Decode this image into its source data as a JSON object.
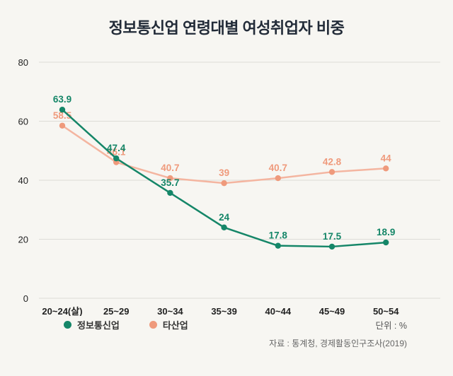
{
  "title": "정보통신업 연령대별 여성취업자 비중",
  "legend": {
    "items": [
      {
        "label": "정보통신업",
        "color": "#158668"
      },
      {
        "label": "타산업",
        "color": "#ef9a7c"
      }
    ]
  },
  "unit_label": "단위 : %",
  "source_label": "자료 : 통계청, 경제활동인구조사(2019)",
  "colors": {
    "background": "#f7f6f2",
    "title_text": "#222b38",
    "grid": "#dddcd7",
    "axis_text": "#222222",
    "ict_series": "#158668",
    "other_series": "#ef9a7c",
    "other_series_line": "#f4b5a0"
  },
  "chart_data": {
    "type": "line",
    "title": "정보통신업 연령대별 여성취업자 비중",
    "categories": [
      "20~24(살)",
      "25~29",
      "30~34",
      "35~39",
      "40~44",
      "45~49",
      "50~54"
    ],
    "series": [
      {
        "name": "정보통신업",
        "color": "#158668",
        "line_color": "#158668",
        "values": [
          63.9,
          47.4,
          35.7,
          24,
          17.8,
          17.5,
          18.9
        ]
      },
      {
        "name": "타산업",
        "color": "#ef9a7c",
        "line_color": "#f4b5a0",
        "values": [
          58.5,
          46.1,
          40.7,
          39,
          40.7,
          42.8,
          44
        ]
      }
    ],
    "xlabel": "",
    "ylabel": "",
    "ylim": [
      0,
      80
    ],
    "yticks": [
      0,
      20,
      40,
      60,
      80
    ],
    "grid": true,
    "data_labels": true,
    "legend_position": "bottom",
    "unit": "%",
    "source": "통계청, 경제활동인구조사(2019)"
  }
}
